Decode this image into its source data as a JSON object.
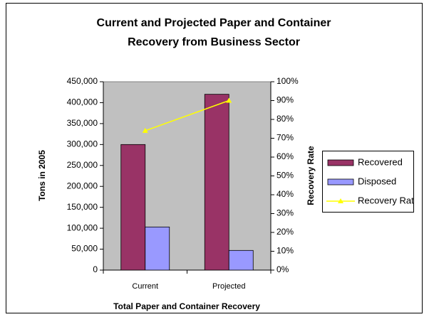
{
  "chart_data": {
    "type": "bar",
    "title": [
      "Current and Projected Paper and Container",
      "Recovery from Business Sector"
    ],
    "x_label": "Total Paper and Container Recovery",
    "y_label": "Tons in 2005",
    "y2_label": "Recovery Rate",
    "categories": [
      "Current",
      "Projected"
    ],
    "series": [
      {
        "name": "Recovered",
        "color": "#993366",
        "values": [
          300000,
          420000
        ]
      },
      {
        "name": "Disposed",
        "color": "#9999ff",
        "values": [
          103000,
          47000
        ]
      },
      {
        "name": "Recovery Rate",
        "color": "#ffff00",
        "type": "line",
        "axis": "y2",
        "values": [
          74,
          90
        ]
      }
    ],
    "ylim": [
      0,
      450000
    ],
    "yticks": [
      {
        "value": 0,
        "label": "0"
      },
      {
        "value": 50000,
        "label": "50,000"
      },
      {
        "value": 100000,
        "label": "100,000"
      },
      {
        "value": 150000,
        "label": "150,000"
      },
      {
        "value": 200000,
        "label": "200,000"
      },
      {
        "value": 250000,
        "label": "250,000"
      },
      {
        "value": 300000,
        "label": "300,000"
      },
      {
        "value": 350000,
        "label": "350,000"
      },
      {
        "value": 400000,
        "label": "400,000"
      },
      {
        "value": 450000,
        "label": "450,000"
      }
    ],
    "y2lim": [
      0,
      100
    ],
    "y2ticks": [
      {
        "value": 0,
        "label": "0%"
      },
      {
        "value": 10,
        "label": "10%"
      },
      {
        "value": 20,
        "label": "20%"
      },
      {
        "value": 30,
        "label": "30%"
      },
      {
        "value": 40,
        "label": "40%"
      },
      {
        "value": 50,
        "label": "50%"
      },
      {
        "value": 60,
        "label": "60%"
      },
      {
        "value": 70,
        "label": "70%"
      },
      {
        "value": 80,
        "label": "80%"
      },
      {
        "value": 90,
        "label": "90%"
      },
      {
        "value": 100,
        "label": "100%"
      }
    ],
    "plot_background": "#c0c0c0",
    "legend": "right"
  }
}
